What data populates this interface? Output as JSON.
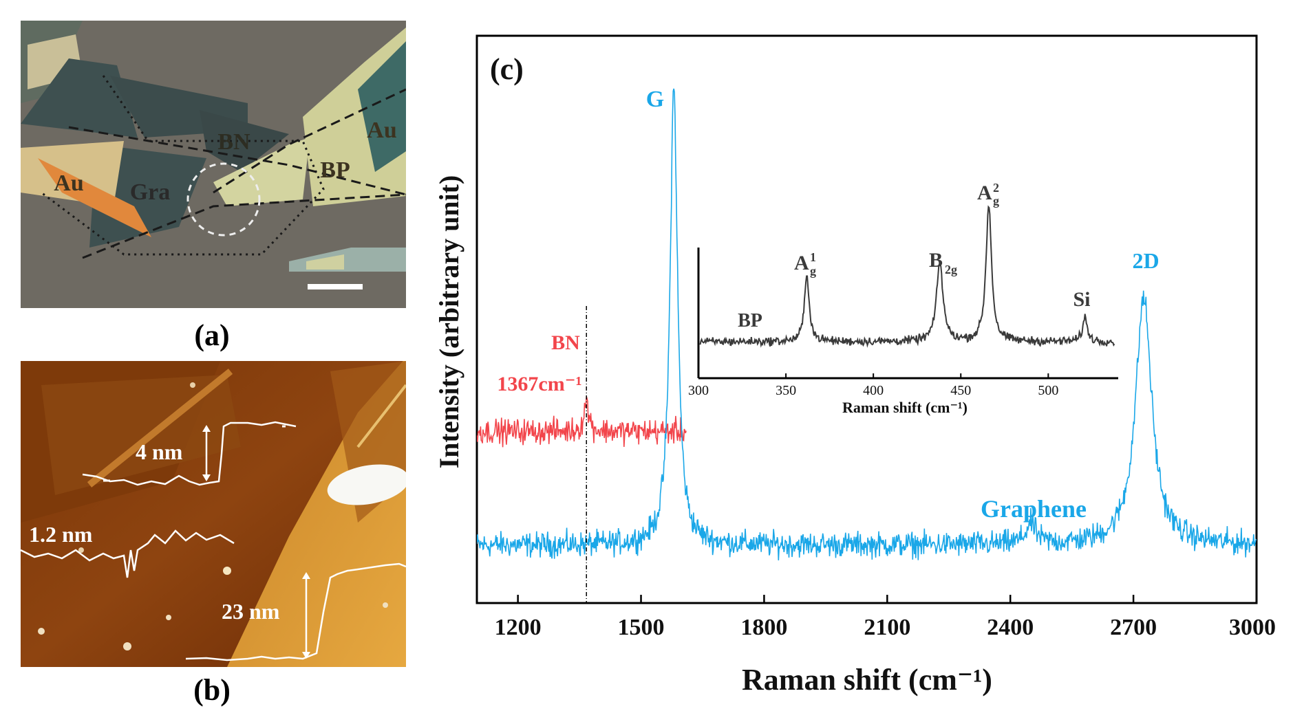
{
  "panel_a": {
    "caption": "(a)",
    "labels": {
      "bn": "BN",
      "au_right": "Au",
      "bp": "BP",
      "au_left": "Au",
      "gra": "Gra"
    }
  },
  "panel_b": {
    "caption": "(b)",
    "step_labels": {
      "four": "4 nm",
      "one_two": "1.2 nm",
      "twenty_three": "23 nm"
    }
  },
  "chart_data": {
    "type": "line",
    "panel_label": "(c)",
    "xlabel": "Raman shift (cm⁻¹)",
    "ylabel": "Intensity (arbitrary unit)",
    "xlim": [
      1100,
      3000
    ],
    "xticks": [
      1200,
      1500,
      1800,
      2100,
      2400,
      2700,
      3000
    ],
    "xtick_labels": [
      "1200",
      "1500",
      "1800",
      "2100",
      "2400",
      "2700",
      "3000"
    ],
    "y_ticks_shown": false,
    "colors": {
      "graphene": "#1aa7e8",
      "bn": "#f2454b",
      "bp": "#3a3a3a",
      "marker": "#000000"
    },
    "series": [
      {
        "name": "Graphene",
        "label": "Graphene",
        "baseline": 0.0,
        "noise": 0.05,
        "peaks": [
          {
            "x": 1580,
            "height": 1.85,
            "width": 11,
            "label": "G"
          },
          {
            "x": 2450,
            "height": 0.08,
            "width": 15
          },
          {
            "x": 2725,
            "height": 1.0,
            "width": 24,
            "label": "2D"
          }
        ]
      },
      {
        "name": "BN",
        "label": "BN",
        "x_range": [
          1100,
          1610
        ],
        "baseline": 0.46,
        "noise": 0.05,
        "peaks": [
          {
            "x": 1367,
            "height": 0.12,
            "width": 7
          }
        ],
        "peak_annotation": "1367cm⁻¹"
      }
    ],
    "annotations": {
      "g_peak": "G",
      "twod_peak": "2D",
      "graphene": "Graphene",
      "bn": "BN",
      "bn_position": "1367cm⁻¹",
      "dashed_marker_x": 1367
    },
    "inset": {
      "type": "line",
      "series_name": "BP",
      "xlabel": "Raman shift (cm⁻¹)",
      "xlim": [
        300,
        540
      ],
      "xticks": [
        300,
        350,
        400,
        450,
        500
      ],
      "xtick_labels": [
        "300",
        "350",
        "400",
        "450",
        "500"
      ],
      "baseline": 0.0,
      "noise": 0.06,
      "peaks": [
        {
          "x": 362,
          "height": 0.95,
          "width": 1.7,
          "label": "A¹g"
        },
        {
          "x": 438,
          "height": 1.15,
          "width": 2.2,
          "label": "B₂g"
        },
        {
          "x": 466,
          "height": 2.0,
          "width": 1.9,
          "label": "A²g"
        },
        {
          "x": 521,
          "height": 0.35,
          "width": 1.6,
          "label": "Si"
        }
      ],
      "label": "BP",
      "peak_labels": {
        "a1g_base": "A",
        "a1g_sup": "1",
        "a1g_sub": "g",
        "b2g_base": "B",
        "b2g_sub": "2g",
        "a2g_base": "A",
        "a2g_sup": "2",
        "a2g_sub": "g",
        "si": "Si"
      }
    }
  }
}
